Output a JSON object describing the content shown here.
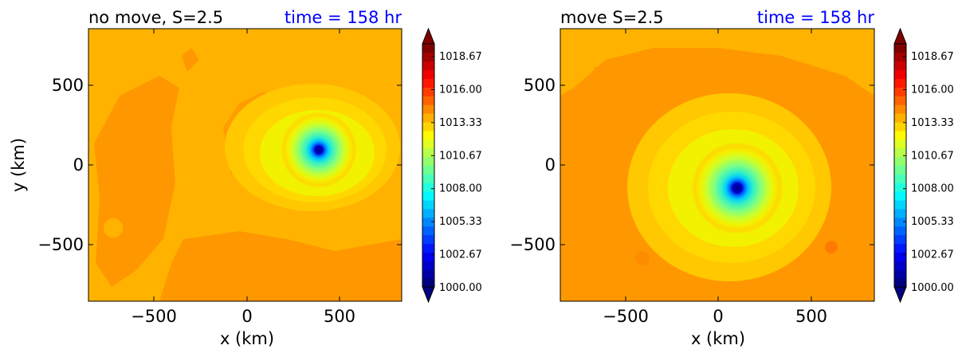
{
  "panels": [
    {
      "title_left": "no move, S=2.5",
      "title_right": "time = 158 hr",
      "xlabel": "x (km)",
      "ylabel": "y (km)",
      "x_ticks": [
        "−500",
        "0",
        "500"
      ],
      "y_ticks": [
        "500",
        "0",
        "−500"
      ]
    },
    {
      "title_left": "move S=2.5",
      "title_right": "time = 158 hr",
      "xlabel": "x (km)",
      "ylabel": "",
      "x_ticks": [
        "−500",
        "0",
        "500"
      ],
      "y_ticks": [
        "500",
        "0",
        "−500"
      ]
    }
  ],
  "colorbar": {
    "labels": [
      "1018.67",
      "1016.00",
      "1013.33",
      "1010.67",
      "1008.00",
      "1005.33",
      "1002.67",
      "1000.00"
    ]
  },
  "colors": {
    "title_right": "#0000ff",
    "background_field": "#ffb300",
    "low_field": "#ff9800"
  },
  "chart_data": [
    {
      "type": "heatmap",
      "title": "no move, S=2.5",
      "annotation": "time = 158 hr",
      "xlabel": "x (km)",
      "ylabel": "y (km)",
      "xlim": [
        -850,
        850
      ],
      "ylim": [
        -850,
        850
      ],
      "x_ticks": [
        -500,
        0,
        500
      ],
      "y_ticks": [
        -500,
        0,
        500
      ],
      "vortex_center_km": [
        390,
        90
      ],
      "min_pressure": 1000.0,
      "ambient_pressure": 1016.0,
      "colorbar_ticks": [
        1000.0,
        1002.67,
        1005.33,
        1008.0,
        1010.67,
        1013.33,
        1016.0,
        1018.67
      ]
    },
    {
      "type": "heatmap",
      "title": "move S=2.5",
      "annotation": "time = 158 hr",
      "xlabel": "x (km)",
      "xlim": [
        -850,
        850
      ],
      "ylim": [
        -850,
        850
      ],
      "x_ticks": [
        -500,
        0,
        500
      ],
      "y_ticks": [
        -500,
        0,
        500
      ],
      "vortex_center_km": [
        125,
        -150
      ],
      "min_pressure": 1000.0,
      "ambient_pressure": 1016.0,
      "colorbar_ticks": [
        1000.0,
        1002.67,
        1005.33,
        1008.0,
        1010.67,
        1013.33,
        1016.0,
        1018.67
      ]
    }
  ]
}
